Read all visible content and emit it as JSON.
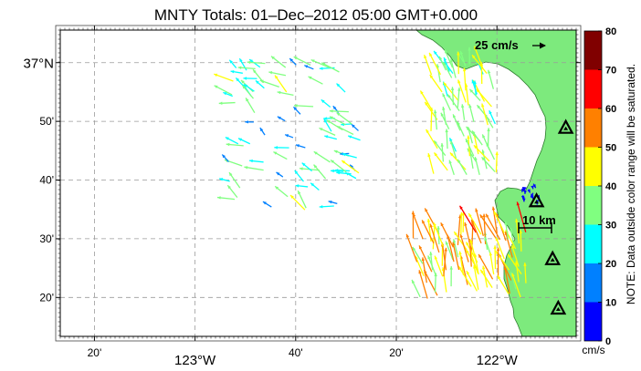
{
  "title": "MNTY Totals: 01–Dec–2012 05:00 GMT+0.000",
  "map": {
    "lat_labels": [
      {
        "text": "37°N",
        "lat": 37.0,
        "major": true
      },
      {
        "text": "50'",
        "lat": 36.8333,
        "major": false
      },
      {
        "text": "40'",
        "lat": 36.6667,
        "major": false
      },
      {
        "text": "30'",
        "lat": 36.5,
        "major": false
      },
      {
        "text": "20'",
        "lat": 36.3333,
        "major": false
      }
    ],
    "lon_labels": [
      {
        "text": "20'",
        "lon": -123.3333,
        "major": false
      },
      {
        "text": "123°W",
        "lon": -123.0,
        "major": true
      },
      {
        "text": "40'",
        "lon": -122.6667,
        "major": false
      },
      {
        "text": "20'",
        "lon": -122.3333,
        "major": false
      },
      {
        "text": "122°W",
        "lon": -122.0,
        "major": true
      }
    ],
    "lon_range": [
      -123.4465,
      -121.7375
    ],
    "lat_range": [
      36.2228,
      37.0925
    ],
    "land_color": "#7dea7d",
    "grid": "dashed",
    "sites": [
      {
        "lon": -121.7969,
        "lat": 36.3004
      },
      {
        "lon": -121.8156,
        "lat": 36.4407
      },
      {
        "lon": -121.8688,
        "lat": 36.6052
      },
      {
        "lon": -121.7719,
        "lat": 36.8137
      }
    ]
  },
  "reference_vector": {
    "label": "25 cm/s",
    "icon": "right-arrow-icon"
  },
  "scale_bar": {
    "label": "10 km"
  },
  "colorbar": {
    "min": 0,
    "max": 80,
    "ticks": [
      "0",
      "10",
      "20",
      "30",
      "40",
      "50",
      "60",
      "70",
      "80"
    ],
    "unit": "cm/s",
    "stops": [
      {
        "value": 0,
        "color": "#0000ff"
      },
      {
        "value": 10,
        "color": "#0080ff"
      },
      {
        "value": 20,
        "color": "#00ffff"
      },
      {
        "value": 30,
        "color": "#80ff80"
      },
      {
        "value": 40,
        "color": "#ffff00"
      },
      {
        "value": 50,
        "color": "#ff8000"
      },
      {
        "value": 60,
        "color": "#ff0000"
      },
      {
        "value": 70,
        "color": "#800000"
      }
    ],
    "note": "NOTE: Data outside color range will be saturated."
  },
  "vector_groups": [
    {
      "name": "offshore-cluster",
      "lon": [
        -122.9,
        -122.45
      ],
      "lat": [
        36.58,
        37.0
      ],
      "count": 90,
      "dir": 300,
      "spread": 35,
      "speed": [
        15,
        42
      ]
    },
    {
      "name": "bay-mouth-cluster",
      "lon": [
        -122.22,
        -122.0
      ],
      "lat": [
        36.68,
        37.0
      ],
      "count": 75,
      "dir": 340,
      "spread": 25,
      "speed": [
        28,
        48
      ]
    },
    {
      "name": "south-cluster",
      "lon": [
        -122.28,
        -121.9
      ],
      "lat": [
        36.33,
        36.52
      ],
      "count": 85,
      "dir": 345,
      "spread": 20,
      "speed": [
        35,
        62
      ]
    },
    {
      "name": "nearshore-cluster",
      "lon": [
        -121.93,
        -121.85
      ],
      "lat": [
        36.6,
        36.66
      ],
      "count": 14,
      "dir": 180,
      "spread": 30,
      "speed": [
        2,
        10
      ]
    }
  ]
}
